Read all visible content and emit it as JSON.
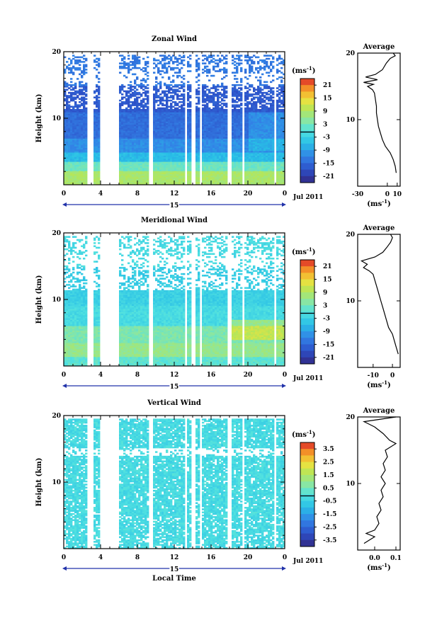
{
  "chart_data": [
    {
      "type": "heatmap",
      "title": "Zonal Wind",
      "ylabel": "Height (km)",
      "ylim": [
        0,
        20
      ],
      "xlim": [
        0,
        24
      ],
      "x_ticks": [
        "0",
        "4",
        "8",
        "12",
        "16",
        "20",
        "0"
      ],
      "y_ticks": [
        "20",
        "10"
      ],
      "date_marker": "15",
      "date_label": "Jul 2011",
      "colorbar": {
        "unit": "(ms⁻¹)",
        "ticks": [
          "21",
          "15",
          "9",
          "3",
          "-3",
          "-9",
          "-15",
          "-21"
        ],
        "range": [
          -24,
          24
        ]
      },
      "average_profile": {
        "title": "Average",
        "xlabel": "(ms⁻¹)",
        "x_ticks": [
          "-30",
          "0",
          "10"
        ],
        "y_ticks": [
          "20",
          "10"
        ],
        "xlim": [
          -30,
          13
        ],
        "points": [
          [
            9,
            2
          ],
          [
            8,
            3
          ],
          [
            6,
            4
          ],
          [
            3,
            5
          ],
          [
            -2,
            6
          ],
          [
            -5,
            7
          ],
          [
            -7,
            8
          ],
          [
            -9,
            9
          ],
          [
            -10,
            10
          ],
          [
            -11,
            11
          ],
          [
            -11,
            12
          ],
          [
            -12,
            13
          ],
          [
            -13,
            14
          ],
          [
            -15,
            14.5
          ],
          [
            -20,
            15
          ],
          [
            -14,
            15.3
          ],
          [
            -24,
            15.6
          ],
          [
            -10,
            16
          ],
          [
            -22,
            16.4
          ],
          [
            -12,
            16.8
          ],
          [
            -5,
            17.5
          ],
          [
            -1,
            18.5
          ],
          [
            3,
            19.2
          ],
          [
            8,
            19.6
          ],
          [
            6,
            20
          ]
        ]
      }
    },
    {
      "type": "heatmap",
      "title": "Meridional Wind",
      "ylabel": "Height (km)",
      "ylim": [
        0,
        20
      ],
      "xlim": [
        0,
        24
      ],
      "x_ticks": [
        "0",
        "4",
        "8",
        "12",
        "16",
        "20",
        "0"
      ],
      "y_ticks": [
        "20",
        "10"
      ],
      "date_marker": "15",
      "date_label": "Jul 2011",
      "colorbar": {
        "unit": "(ms⁻¹)",
        "ticks": [
          "21",
          "15",
          "9",
          "3",
          "-3",
          "-9",
          "-15",
          "-21"
        ],
        "range": [
          -24,
          24
        ]
      },
      "average_profile": {
        "title": "Average",
        "xlabel": "(ms⁻¹)",
        "x_ticks": [
          "-10",
          "0"
        ],
        "y_ticks": [
          "20",
          "10"
        ],
        "xlim": [
          -18,
          4
        ],
        "points": [
          [
            3,
            2
          ],
          [
            2,
            3
          ],
          [
            1,
            4
          ],
          [
            0,
            5
          ],
          [
            -2,
            6
          ],
          [
            -3,
            7
          ],
          [
            -4,
            8
          ],
          [
            -5,
            9
          ],
          [
            -6,
            10
          ],
          [
            -7,
            11
          ],
          [
            -8,
            12
          ],
          [
            -9,
            13
          ],
          [
            -10,
            14
          ],
          [
            -12,
            14.5
          ],
          [
            -15,
            15
          ],
          [
            -13,
            15.5
          ],
          [
            -16,
            16
          ],
          [
            -9,
            16.6
          ],
          [
            -5,
            17.3
          ],
          [
            -3,
            18
          ],
          [
            -1,
            18.8
          ],
          [
            0,
            19.5
          ],
          [
            -1,
            20
          ]
        ]
      }
    },
    {
      "type": "heatmap",
      "title": "Vertical Wind",
      "xlabel": "Local Time",
      "ylabel": "Height (km)",
      "ylim": [
        0,
        20
      ],
      "xlim": [
        0,
        24
      ],
      "x_ticks": [
        "0",
        "4",
        "8",
        "12",
        "16",
        "20",
        "0"
      ],
      "y_ticks": [
        "20",
        "10"
      ],
      "date_marker": "15",
      "date_label": "Jul 2011",
      "colorbar": {
        "unit": "(ms⁻¹)",
        "ticks": [
          "3.5",
          "2.5",
          "1.5",
          "0.5",
          "-0.5",
          "-1.5",
          "-2.5",
          "-3.5"
        ],
        "range": [
          -4,
          4
        ]
      },
      "average_profile": {
        "title": "Average",
        "xlabel": "(ms⁻¹)",
        "x_ticks": [
          "0.0",
          "0.1"
        ],
        "y_ticks": [
          "20",
          "10"
        ],
        "xlim": [
          -0.08,
          0.12
        ],
        "points": [
          [
            -0.05,
            1
          ],
          [
            0.0,
            2
          ],
          [
            -0.04,
            2.5
          ],
          [
            0.0,
            3
          ],
          [
            0.02,
            4
          ],
          [
            0.01,
            5
          ],
          [
            0.03,
            6
          ],
          [
            0.02,
            7
          ],
          [
            0.04,
            8
          ],
          [
            0.03,
            9
          ],
          [
            0.05,
            10
          ],
          [
            0.03,
            11
          ],
          [
            0.05,
            12
          ],
          [
            0.04,
            13
          ],
          [
            0.06,
            14
          ],
          [
            0.05,
            15
          ],
          [
            0.1,
            16
          ],
          [
            0.07,
            16.5
          ],
          [
            0.04,
            17.5
          ],
          [
            0.0,
            18.5
          ],
          [
            -0.05,
            19.3
          ],
          [
            0.1,
            20
          ]
        ]
      }
    }
  ]
}
